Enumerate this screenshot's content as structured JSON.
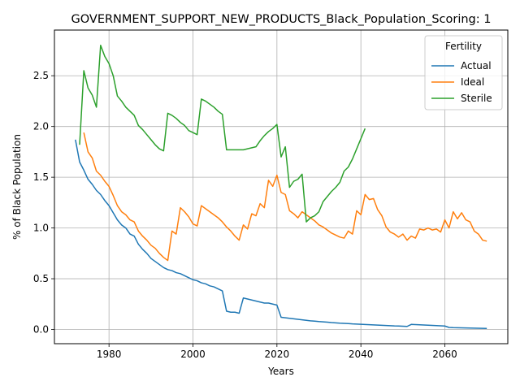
{
  "chart_data": {
    "type": "line",
    "title": "GOVERNMENT_SUPPORT_NEW_PRODUCTS_Black_Population_Scoring: 1",
    "xlabel": "Years",
    "ylabel": "% of Black Population",
    "xlim": [
      1967,
      2075
    ],
    "ylim": [
      -0.14,
      2.95
    ],
    "xticks": [
      1980,
      2000,
      2020,
      2040,
      2060
    ],
    "yticks": [
      0.0,
      0.5,
      1.0,
      1.5,
      2.0,
      2.5
    ],
    "xtick_labels": [
      "1980",
      "2000",
      "2020",
      "2040",
      "2060"
    ],
    "ytick_labels": [
      "0.0",
      "0.5",
      "1.0",
      "1.5",
      "2.0",
      "2.5"
    ],
    "grid": true,
    "legend": {
      "title": "Fertility",
      "placement": "top-right"
    },
    "series": [
      {
        "name": "Actual",
        "color": "#1f77b4",
        "x": [
          1972,
          1973,
          1974,
          1975,
          1976,
          1977,
          1978,
          1979,
          1980,
          1981,
          1982,
          1983,
          1984,
          1985,
          1986,
          1987,
          1988,
          1989,
          1990,
          1991,
          1992,
          1993,
          1994,
          1995,
          1996,
          1997,
          1998,
          1999,
          2000,
          2001,
          2002,
          2003,
          2004,
          2005,
          2006,
          2007,
          2008,
          2009,
          2010,
          2011,
          2012,
          2013,
          2014,
          2015,
          2016,
          2017,
          2018,
          2019,
          2020,
          2021,
          2022,
          2023,
          2024,
          2025,
          2026,
          2027,
          2028,
          2029,
          2030,
          2031,
          2032,
          2033,
          2034,
          2035,
          2036,
          2037,
          2038,
          2039,
          2040,
          2041,
          2042,
          2043,
          2044,
          2045,
          2046,
          2047,
          2048,
          2049,
          2050,
          2051,
          2052,
          2053,
          2054,
          2055,
          2056,
          2057,
          2058,
          2059,
          2060,
          2061,
          2062,
          2063,
          2064,
          2065,
          2066,
          2067,
          2068,
          2069,
          2070
        ],
        "y": [
          1.87,
          1.65,
          1.57,
          1.48,
          1.43,
          1.37,
          1.33,
          1.27,
          1.22,
          1.15,
          1.08,
          1.03,
          1.0,
          0.94,
          0.92,
          0.84,
          0.79,
          0.75,
          0.7,
          0.67,
          0.64,
          0.61,
          0.59,
          0.58,
          0.56,
          0.55,
          0.53,
          0.51,
          0.49,
          0.48,
          0.46,
          0.45,
          0.43,
          0.42,
          0.4,
          0.38,
          0.18,
          0.17,
          0.17,
          0.16,
          0.31,
          0.3,
          0.29,
          0.28,
          0.27,
          0.26,
          0.26,
          0.25,
          0.24,
          0.12,
          0.115,
          0.11,
          0.105,
          0.1,
          0.095,
          0.09,
          0.085,
          0.082,
          0.078,
          0.075,
          0.072,
          0.068,
          0.065,
          0.062,
          0.06,
          0.058,
          0.055,
          0.053,
          0.051,
          0.049,
          0.047,
          0.045,
          0.043,
          0.041,
          0.039,
          0.037,
          0.035,
          0.034,
          0.032,
          0.03,
          0.05,
          0.048,
          0.046,
          0.044,
          0.042,
          0.04,
          0.038,
          0.036,
          0.034,
          0.02,
          0.018,
          0.017,
          0.016,
          0.015,
          0.014,
          0.013,
          0.012,
          0.011,
          0.01
        ]
      },
      {
        "name": "Ideal",
        "color": "#ff7f0e",
        "x": [
          1974,
          1975,
          1976,
          1977,
          1978,
          1979,
          1980,
          1981,
          1982,
          1983,
          1984,
          1985,
          1986,
          1987,
          1988,
          1989,
          1990,
          1991,
          1992,
          1993,
          1994,
          1995,
          1996,
          1997,
          1998,
          1999,
          2000,
          2001,
          2002,
          2003,
          2004,
          2005,
          2006,
          2007,
          2008,
          2009,
          2010,
          2011,
          2012,
          2013,
          2014,
          2015,
          2016,
          2017,
          2018,
          2019,
          2020,
          2021,
          2022,
          2023,
          2024,
          2025,
          2026,
          2027,
          2028,
          2029,
          2030,
          2031,
          2032,
          2033,
          2034,
          2035,
          2036,
          2037,
          2038,
          2039,
          2040,
          2041,
          2042,
          2043,
          2044,
          2045,
          2046,
          2047,
          2048,
          2049,
          2050,
          2051,
          2052,
          2053,
          2054,
          2055,
          2056,
          2057,
          2058,
          2059,
          2060,
          2061,
          2062,
          2063,
          2064,
          2065,
          2066,
          2067,
          2068,
          2069,
          2070
        ],
        "y": [
          1.94,
          1.75,
          1.69,
          1.56,
          1.52,
          1.46,
          1.41,
          1.32,
          1.22,
          1.16,
          1.13,
          1.08,
          1.06,
          0.97,
          0.92,
          0.88,
          0.83,
          0.8,
          0.75,
          0.71,
          0.68,
          0.97,
          0.94,
          1.2,
          1.16,
          1.11,
          1.04,
          1.02,
          1.22,
          1.19,
          1.16,
          1.13,
          1.1,
          1.06,
          1.01,
          0.97,
          0.92,
          0.88,
          1.03,
          0.99,
          1.14,
          1.12,
          1.24,
          1.2,
          1.47,
          1.41,
          1.52,
          1.35,
          1.33,
          1.17,
          1.14,
          1.1,
          1.16,
          1.13,
          1.1,
          1.07,
          1.03,
          1.01,
          0.98,
          0.95,
          0.93,
          0.91,
          0.9,
          0.97,
          0.94,
          1.17,
          1.13,
          1.33,
          1.28,
          1.29,
          1.18,
          1.12,
          1.01,
          0.96,
          0.94,
          0.91,
          0.94,
          0.88,
          0.92,
          0.9,
          0.99,
          0.98,
          1.0,
          0.98,
          0.99,
          0.96,
          1.08,
          1.0,
          1.16,
          1.09,
          1.15,
          1.08,
          1.06,
          0.97,
          0.94,
          0.88,
          0.87
        ]
      },
      {
        "name": "Sterile",
        "color": "#2ca02c",
        "x": [
          1973,
          1974,
          1975,
          1976,
          1977,
          1978,
          1979,
          1980,
          1981,
          1982,
          1983,
          1984,
          1985,
          1986,
          1987,
          1988,
          1989,
          1990,
          1991,
          1992,
          1993,
          1994,
          1995,
          1996,
          1997,
          1998,
          1999,
          2000,
          2001,
          2002,
          2003,
          2004,
          2005,
          2006,
          2007,
          2008,
          2009,
          2010,
          2011,
          2012,
          2013,
          2014,
          2015,
          2016,
          2017,
          2018,
          2019,
          2020,
          2021,
          2022,
          2023,
          2024,
          2025,
          2026,
          2027,
          2028,
          2029,
          2030,
          2031,
          2032,
          2033,
          2034,
          2035,
          2036,
          2037,
          2038,
          2039,
          2040,
          2041
        ],
        "y": [
          1.82,
          2.55,
          2.38,
          2.31,
          2.19,
          2.8,
          2.69,
          2.62,
          2.5,
          2.3,
          2.25,
          2.19,
          2.15,
          2.11,
          2.01,
          1.97,
          1.92,
          1.87,
          1.82,
          1.78,
          1.76,
          2.13,
          2.11,
          2.08,
          2.04,
          2.01,
          1.96,
          1.94,
          1.92,
          2.27,
          2.25,
          2.22,
          2.19,
          2.15,
          2.12,
          1.77,
          1.77,
          1.77,
          1.77,
          1.77,
          1.78,
          1.79,
          1.8,
          1.86,
          1.91,
          1.95,
          1.98,
          2.02,
          1.7,
          1.8,
          1.4,
          1.46,
          1.48,
          1.53,
          1.06,
          1.1,
          1.12,
          1.16,
          1.26,
          1.31,
          1.36,
          1.4,
          1.45,
          1.56,
          1.6,
          1.68,
          1.78,
          1.88,
          1.98
        ]
      }
    ]
  }
}
